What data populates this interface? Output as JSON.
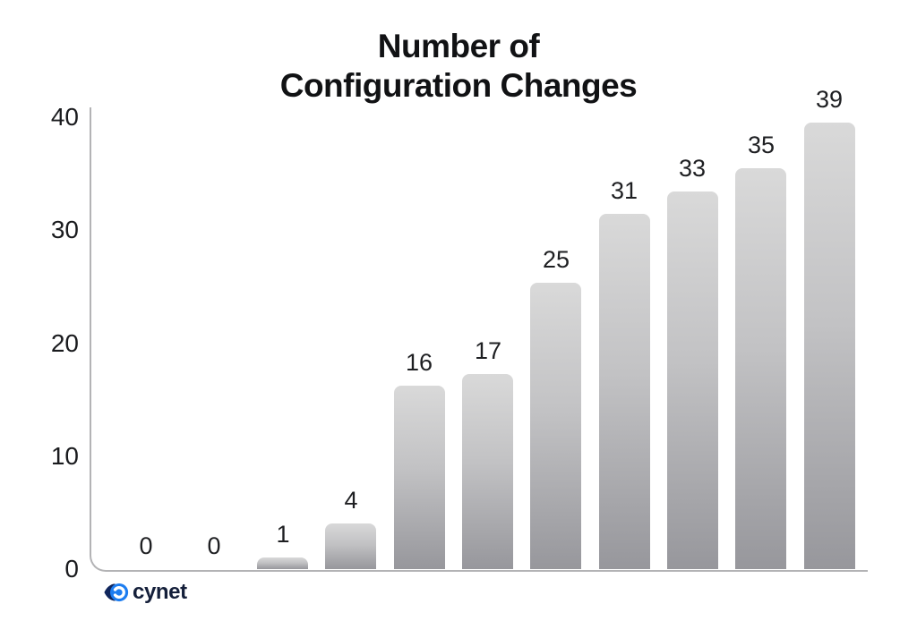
{
  "title": "Number of\nConfiguration Changes",
  "logo": {
    "text": "cynet",
    "icon": "cynet-eye-icon",
    "icon_blue": "#1d7df0",
    "icon_navy": "#10265c"
  },
  "colors": {
    "background": "#ffffff",
    "axis": "#b3b3b5",
    "text": "#1a1b1e",
    "bar_gradient_top": "#d9d9d9",
    "bar_gradient_bottom": "#97979c"
  },
  "chart_data": {
    "type": "bar",
    "title": "Number of Configuration Changes",
    "categories": [
      "",
      "",
      "",
      "",
      "",
      "",
      "",
      "",
      "",
      "",
      ""
    ],
    "values": [
      0,
      0,
      1,
      4,
      16,
      17,
      25,
      31,
      33,
      35,
      39
    ],
    "data_labels": [
      "0",
      "0",
      "1",
      "4",
      "16",
      "17",
      "25",
      "31",
      "33",
      "35",
      "39"
    ],
    "xlabel": "",
    "ylabel": "",
    "ylim": [
      0,
      40
    ],
    "yticks": [
      0,
      10,
      20,
      30,
      40
    ],
    "grid": false,
    "legend": false,
    "bar_style": "vertical gray gradient, rounded top corners, value labels above bars"
  }
}
